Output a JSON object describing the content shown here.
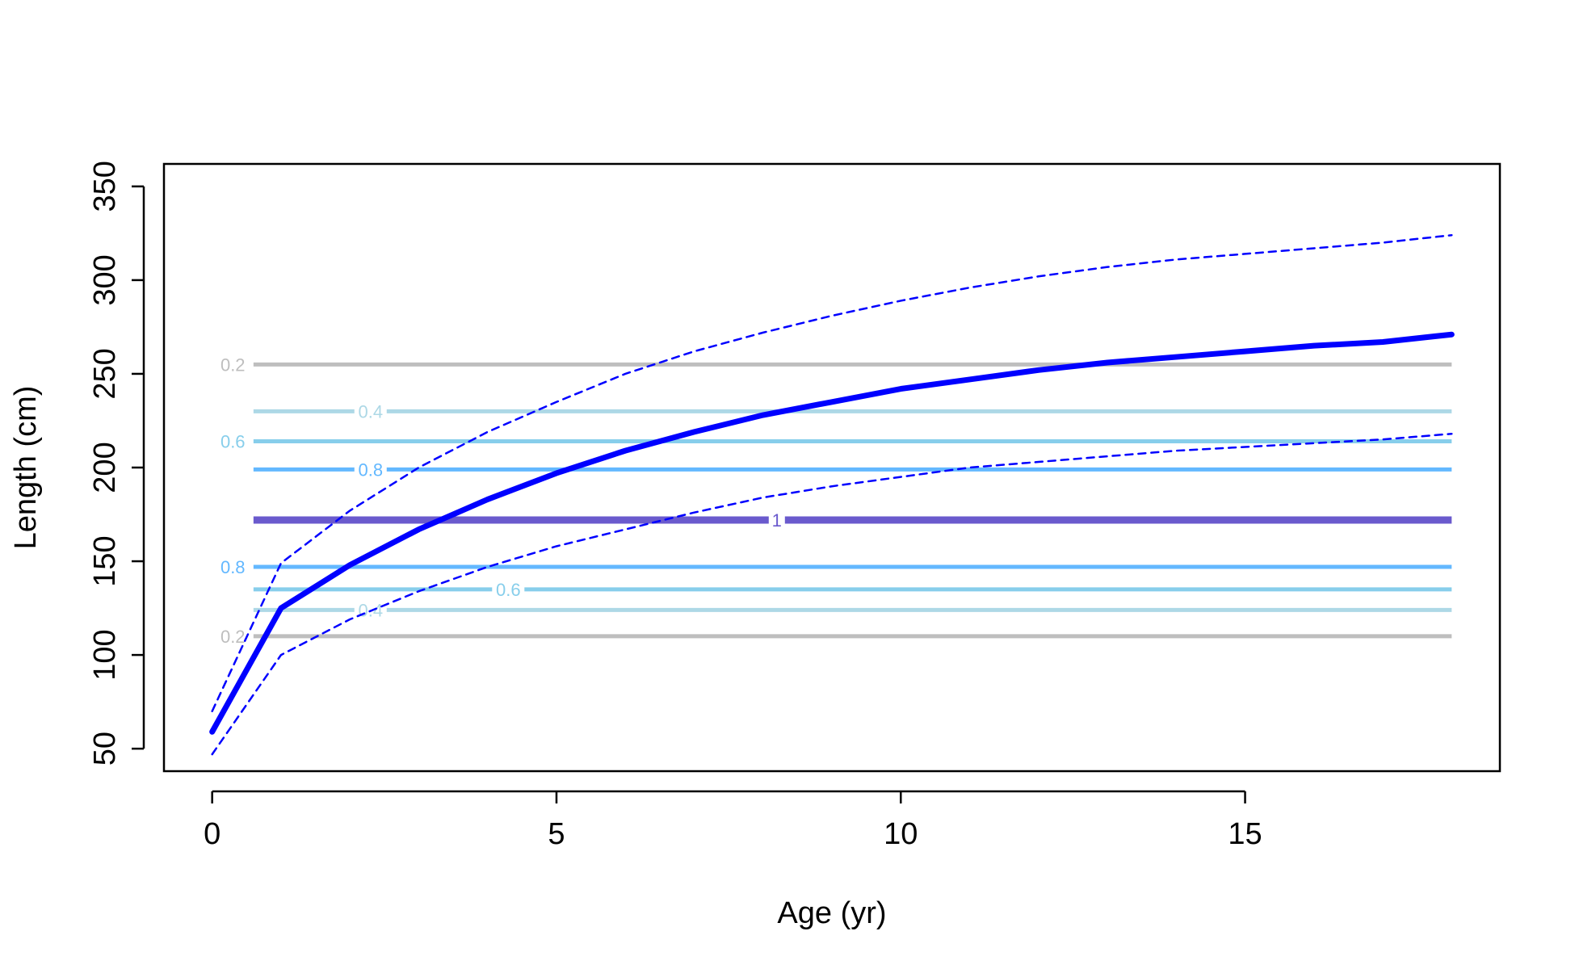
{
  "chart_data": {
    "type": "line",
    "title": "",
    "xlabel": "Age (yr)",
    "ylabel": "Length (cm)",
    "xlim": [
      -0.7,
      18.7
    ],
    "ylim": [
      38,
      362
    ],
    "x_ticks": [
      0,
      5,
      10,
      15
    ],
    "y_ticks": [
      50,
      100,
      150,
      200,
      250,
      300,
      350
    ],
    "grid": false,
    "legend": "none",
    "contours": [
      {
        "level": 0.2,
        "label": "0.2",
        "y": 255,
        "color": "#bebebe",
        "label_x": 0.3
      },
      {
        "level": 0.4,
        "label": "0.4",
        "y": 230,
        "color": "#add8e6",
        "label_x": 2.3
      },
      {
        "level": 0.6,
        "label": "0.6",
        "y": 214,
        "color": "#87ceeb",
        "label_x": 0.3
      },
      {
        "level": 0.8,
        "label": "0.8",
        "y": 199,
        "color": "#63b8ff",
        "label_x": 2.3
      },
      {
        "level": 1.0,
        "label": "1",
        "y": 172,
        "color": "#6a5acd",
        "label_x": 8.2
      },
      {
        "level": 0.8,
        "label": "0.8",
        "y": 147,
        "color": "#63b8ff",
        "label_x": 0.3
      },
      {
        "level": 0.6,
        "label": "0.6",
        "y": 135,
        "color": "#87ceeb",
        "label_x": 4.3
      },
      {
        "level": 0.4,
        "label": "0.4",
        "y": 124,
        "color": "#add8e6",
        "label_x": 2.3
      },
      {
        "level": 0.2,
        "label": "0.2",
        "y": 110,
        "color": "#bebebe",
        "label_x": 0.3
      }
    ],
    "series": [
      {
        "role": "mean",
        "color": "#0000ff",
        "x": [
          0,
          1,
          2,
          3,
          4,
          5,
          6,
          7,
          8,
          9,
          10,
          11,
          12,
          13,
          14,
          15,
          16,
          17,
          18
        ],
        "values": [
          59,
          125,
          148,
          167,
          183,
          197,
          209,
          219,
          228,
          235,
          242,
          247,
          252,
          256,
          259,
          262,
          265,
          267,
          271
        ]
      },
      {
        "role": "upper",
        "color": "#0000ff",
        "x": [
          0,
          1,
          2,
          3,
          4,
          5,
          6,
          7,
          8,
          9,
          10,
          11,
          12,
          13,
          14,
          15,
          16,
          17,
          18
        ],
        "values": [
          70,
          149,
          177,
          200,
          219,
          235,
          250,
          262,
          272,
          281,
          289,
          296,
          302,
          307,
          311,
          314,
          317,
          320,
          324
        ]
      },
      {
        "role": "lower",
        "color": "#0000ff",
        "x": [
          0,
          1,
          2,
          3,
          4,
          5,
          6,
          7,
          8,
          9,
          10,
          11,
          12,
          13,
          14,
          15,
          16,
          17,
          18
        ],
        "values": [
          47,
          100,
          119,
          134,
          147,
          158,
          167,
          176,
          184,
          190,
          195,
          200,
          203,
          206,
          209,
          211,
          213,
          215,
          218
        ]
      }
    ]
  }
}
